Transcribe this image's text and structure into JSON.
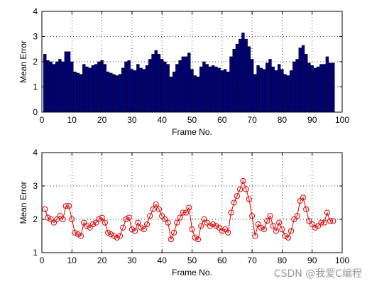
{
  "chart_data": [
    {
      "type": "bar",
      "xlabel": "Frame No.",
      "ylabel": "Mean Error",
      "xlim": [
        0,
        100
      ],
      "ylim": [
        0,
        4
      ],
      "xticks": [
        0,
        10,
        20,
        30,
        40,
        50,
        60,
        70,
        80,
        90,
        100
      ],
      "yticks": [
        0,
        1,
        2,
        3,
        4
      ],
      "grid": true,
      "bar_color": "#000080",
      "x": [
        1,
        2,
        3,
        4,
        5,
        6,
        7,
        8,
        9,
        10,
        11,
        12,
        13,
        14,
        15,
        16,
        17,
        18,
        19,
        20,
        21,
        22,
        23,
        24,
        25,
        26,
        27,
        28,
        29,
        30,
        31,
        32,
        33,
        34,
        35,
        36,
        37,
        38,
        39,
        40,
        41,
        42,
        43,
        44,
        45,
        46,
        47,
        48,
        49,
        50,
        51,
        52,
        53,
        54,
        55,
        56,
        57,
        58,
        59,
        60,
        61,
        62,
        63,
        64,
        65,
        66,
        67,
        68,
        69,
        70,
        71,
        72,
        73,
        74,
        75,
        76,
        77,
        78,
        79,
        80,
        81,
        82,
        83,
        84,
        85,
        86,
        87,
        88,
        89,
        90,
        91,
        92,
        93,
        94,
        95,
        96,
        97
      ],
      "values": [
        2.3,
        2.05,
        2.0,
        1.9,
        2.0,
        2.1,
        2.0,
        2.4,
        2.4,
        2.0,
        1.6,
        1.55,
        1.5,
        1.9,
        1.8,
        1.75,
        1.85,
        1.9,
        2.0,
        2.05,
        1.9,
        1.6,
        1.55,
        1.5,
        1.45,
        1.5,
        1.75,
        2.0,
        2.05,
        1.7,
        1.65,
        1.9,
        1.75,
        1.7,
        1.85,
        2.1,
        2.3,
        2.45,
        2.3,
        2.1,
        2.0,
        1.9,
        1.4,
        1.6,
        1.9,
        2.05,
        2.2,
        2.2,
        2.35,
        1.7,
        1.45,
        1.4,
        1.8,
        2.0,
        1.9,
        1.8,
        1.85,
        1.8,
        1.75,
        1.65,
        1.7,
        1.6,
        2.2,
        2.5,
        2.7,
        2.9,
        3.15,
        2.9,
        2.6,
        2.1,
        1.5,
        1.85,
        1.75,
        1.7,
        1.95,
        2.1,
        1.8,
        1.65,
        1.9,
        1.7,
        1.5,
        1.45,
        1.65,
        2.0,
        2.1,
        2.55,
        2.65,
        2.3,
        1.95,
        1.85,
        1.75,
        1.8,
        1.9,
        1.9,
        2.2,
        1.95,
        1.95
      ]
    },
    {
      "type": "line",
      "xlabel": "Frame No.",
      "ylabel": "Mean Error",
      "xlim": [
        0,
        100
      ],
      "ylim": [
        1,
        4
      ],
      "xticks": [
        0,
        10,
        20,
        30,
        40,
        50,
        60,
        70,
        80,
        90,
        100
      ],
      "yticks": [
        1,
        2,
        3,
        4
      ],
      "grid": true,
      "marker": "circle",
      "line_color": "#dd0000",
      "x": [
        1,
        2,
        3,
        4,
        5,
        6,
        7,
        8,
        9,
        10,
        11,
        12,
        13,
        14,
        15,
        16,
        17,
        18,
        19,
        20,
        21,
        22,
        23,
        24,
        25,
        26,
        27,
        28,
        29,
        30,
        31,
        32,
        33,
        34,
        35,
        36,
        37,
        38,
        39,
        40,
        41,
        42,
        43,
        44,
        45,
        46,
        47,
        48,
        49,
        50,
        51,
        52,
        53,
        54,
        55,
        56,
        57,
        58,
        59,
        60,
        61,
        62,
        63,
        64,
        65,
        66,
        67,
        68,
        69,
        70,
        71,
        72,
        73,
        74,
        75,
        76,
        77,
        78,
        79,
        80,
        81,
        82,
        83,
        84,
        85,
        86,
        87,
        88,
        89,
        90,
        91,
        92,
        93,
        94,
        95,
        96,
        97
      ],
      "values": [
        2.3,
        2.05,
        2.0,
        1.9,
        2.0,
        2.1,
        2.0,
        2.4,
        2.4,
        2.0,
        1.6,
        1.55,
        1.5,
        1.9,
        1.8,
        1.75,
        1.85,
        1.9,
        2.0,
        2.05,
        1.9,
        1.6,
        1.55,
        1.5,
        1.45,
        1.5,
        1.75,
        2.0,
        2.05,
        1.7,
        1.65,
        1.9,
        1.75,
        1.7,
        1.85,
        2.1,
        2.3,
        2.45,
        2.3,
        2.1,
        2.0,
        1.9,
        1.4,
        1.6,
        1.9,
        2.05,
        2.2,
        2.2,
        2.35,
        1.7,
        1.45,
        1.4,
        1.8,
        2.0,
        1.9,
        1.8,
        1.85,
        1.8,
        1.75,
        1.65,
        1.7,
        1.6,
        2.2,
        2.5,
        2.7,
        2.9,
        3.15,
        2.9,
        2.6,
        2.1,
        1.5,
        1.85,
        1.75,
        1.7,
        1.95,
        2.1,
        1.8,
        1.65,
        1.9,
        1.7,
        1.5,
        1.45,
        1.65,
        2.0,
        2.1,
        2.55,
        2.65,
        2.3,
        1.95,
        1.85,
        1.75,
        1.8,
        1.9,
        1.9,
        2.2,
        1.95,
        1.95
      ]
    }
  ],
  "watermark": "CSDN @我爱C编程"
}
